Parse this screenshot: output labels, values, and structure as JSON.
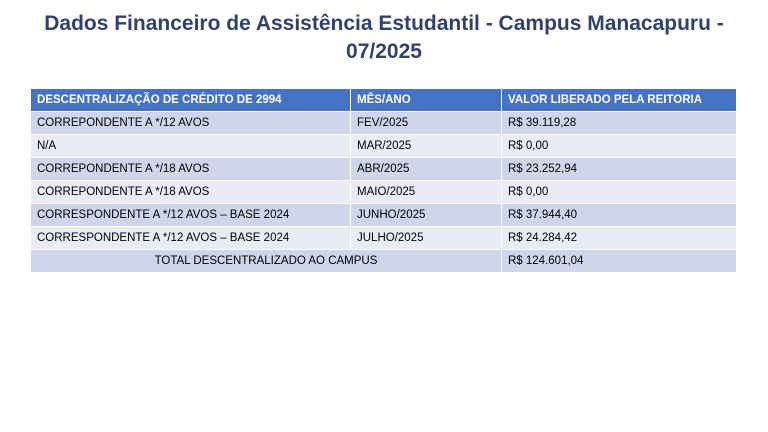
{
  "title": "Dados Financeiro de Assistência Estudantil - Campus Manacapuru - 07/2025",
  "table": {
    "headers": [
      "DESCENTRALIZAÇÃO DE CRÉDITO DE 2994",
      "MÊS/ANO",
      "VALOR LIBERADO PELA REITORIA"
    ],
    "rows": [
      [
        "CORREPONDENTE A */12 AVOS",
        "FEV/2025",
        "R$ 39.119,28"
      ],
      [
        "N/A",
        "MAR/2025",
        "R$ 0,00"
      ],
      [
        "CORREPONDENTE A */18 AVOS",
        "ABR/2025",
        "R$ 23.252,94"
      ],
      [
        "CORREPONDENTE A */18 AVOS",
        "MAIO/2025",
        "R$ 0,00"
      ],
      [
        "CORRESPONDENTE A */12 AVOS – BASE 2024",
        "JUNHO/2025",
        "R$ 37.944,40"
      ],
      [
        "CORRESPONDENTE A */12 AVOS – BASE 2024",
        "JULHO/2025",
        "R$ 24.284,42"
      ]
    ],
    "total": {
      "label": "TOTAL DESCENTRALIZADO AO CAMPUS",
      "value": "R$ 124.601,04"
    }
  },
  "colors": {
    "title": "#2e4170",
    "header_bg": "#4472c4",
    "row_dark": "#cfd5ea",
    "row_light": "#e9ebf5"
  }
}
